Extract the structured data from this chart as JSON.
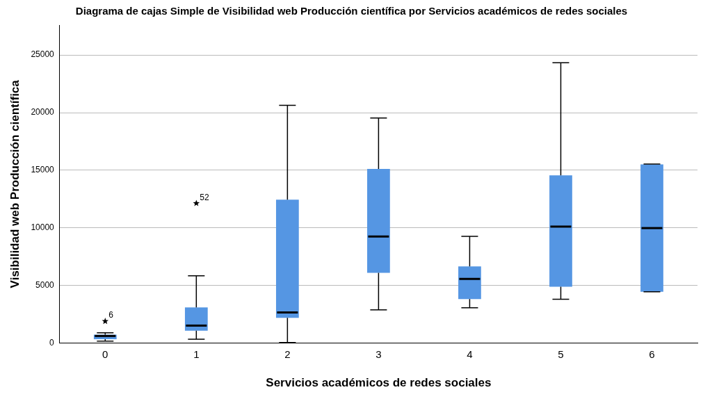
{
  "chart_data": {
    "type": "box",
    "title": "Diagrama de cajas Simple de Visibilidad web Producción científica por Servicios académicos de redes sociales",
    "xlabel": "Servicios académicos de redes sociales",
    "ylabel": "Visibilidad web Producción científica",
    "categories": [
      "0",
      "1",
      "2",
      "3",
      "4",
      "5",
      "6"
    ],
    "color": "#5596e3",
    "ylim": [
      0,
      27600
    ],
    "yticks": [
      0,
      5000,
      10000,
      15000,
      20000,
      25000
    ],
    "grid": "y",
    "legend": false,
    "boxes": [
      {
        "low": 170,
        "q1": 340,
        "median": 620,
        "q3": 730,
        "high": 900,
        "outliers": [
          1900
        ]
      },
      {
        "low": 340,
        "q1": 1070,
        "median": 1520,
        "q3": 3090,
        "high": 5840,
        "outliers": [
          12130
        ]
      },
      {
        "low": 50,
        "q1": 2190,
        "median": 2660,
        "q3": 12440,
        "high": 20630
      },
      {
        "low": 2890,
        "q1": 6100,
        "median": 9250,
        "q3": 15110,
        "high": 19530
      },
      {
        "low": 3070,
        "q1": 3820,
        "median": 5570,
        "q3": 6660,
        "high": 9270
      },
      {
        "low": 3800,
        "q1": 4890,
        "median": 10110,
        "q3": 14560,
        "high": 24330
      },
      {
        "low": 4450,
        "q1": 4450,
        "median": 9980,
        "q3": 15500,
        "high": 15530
      }
    ],
    "annotations": [
      "6",
      "52"
    ]
  }
}
